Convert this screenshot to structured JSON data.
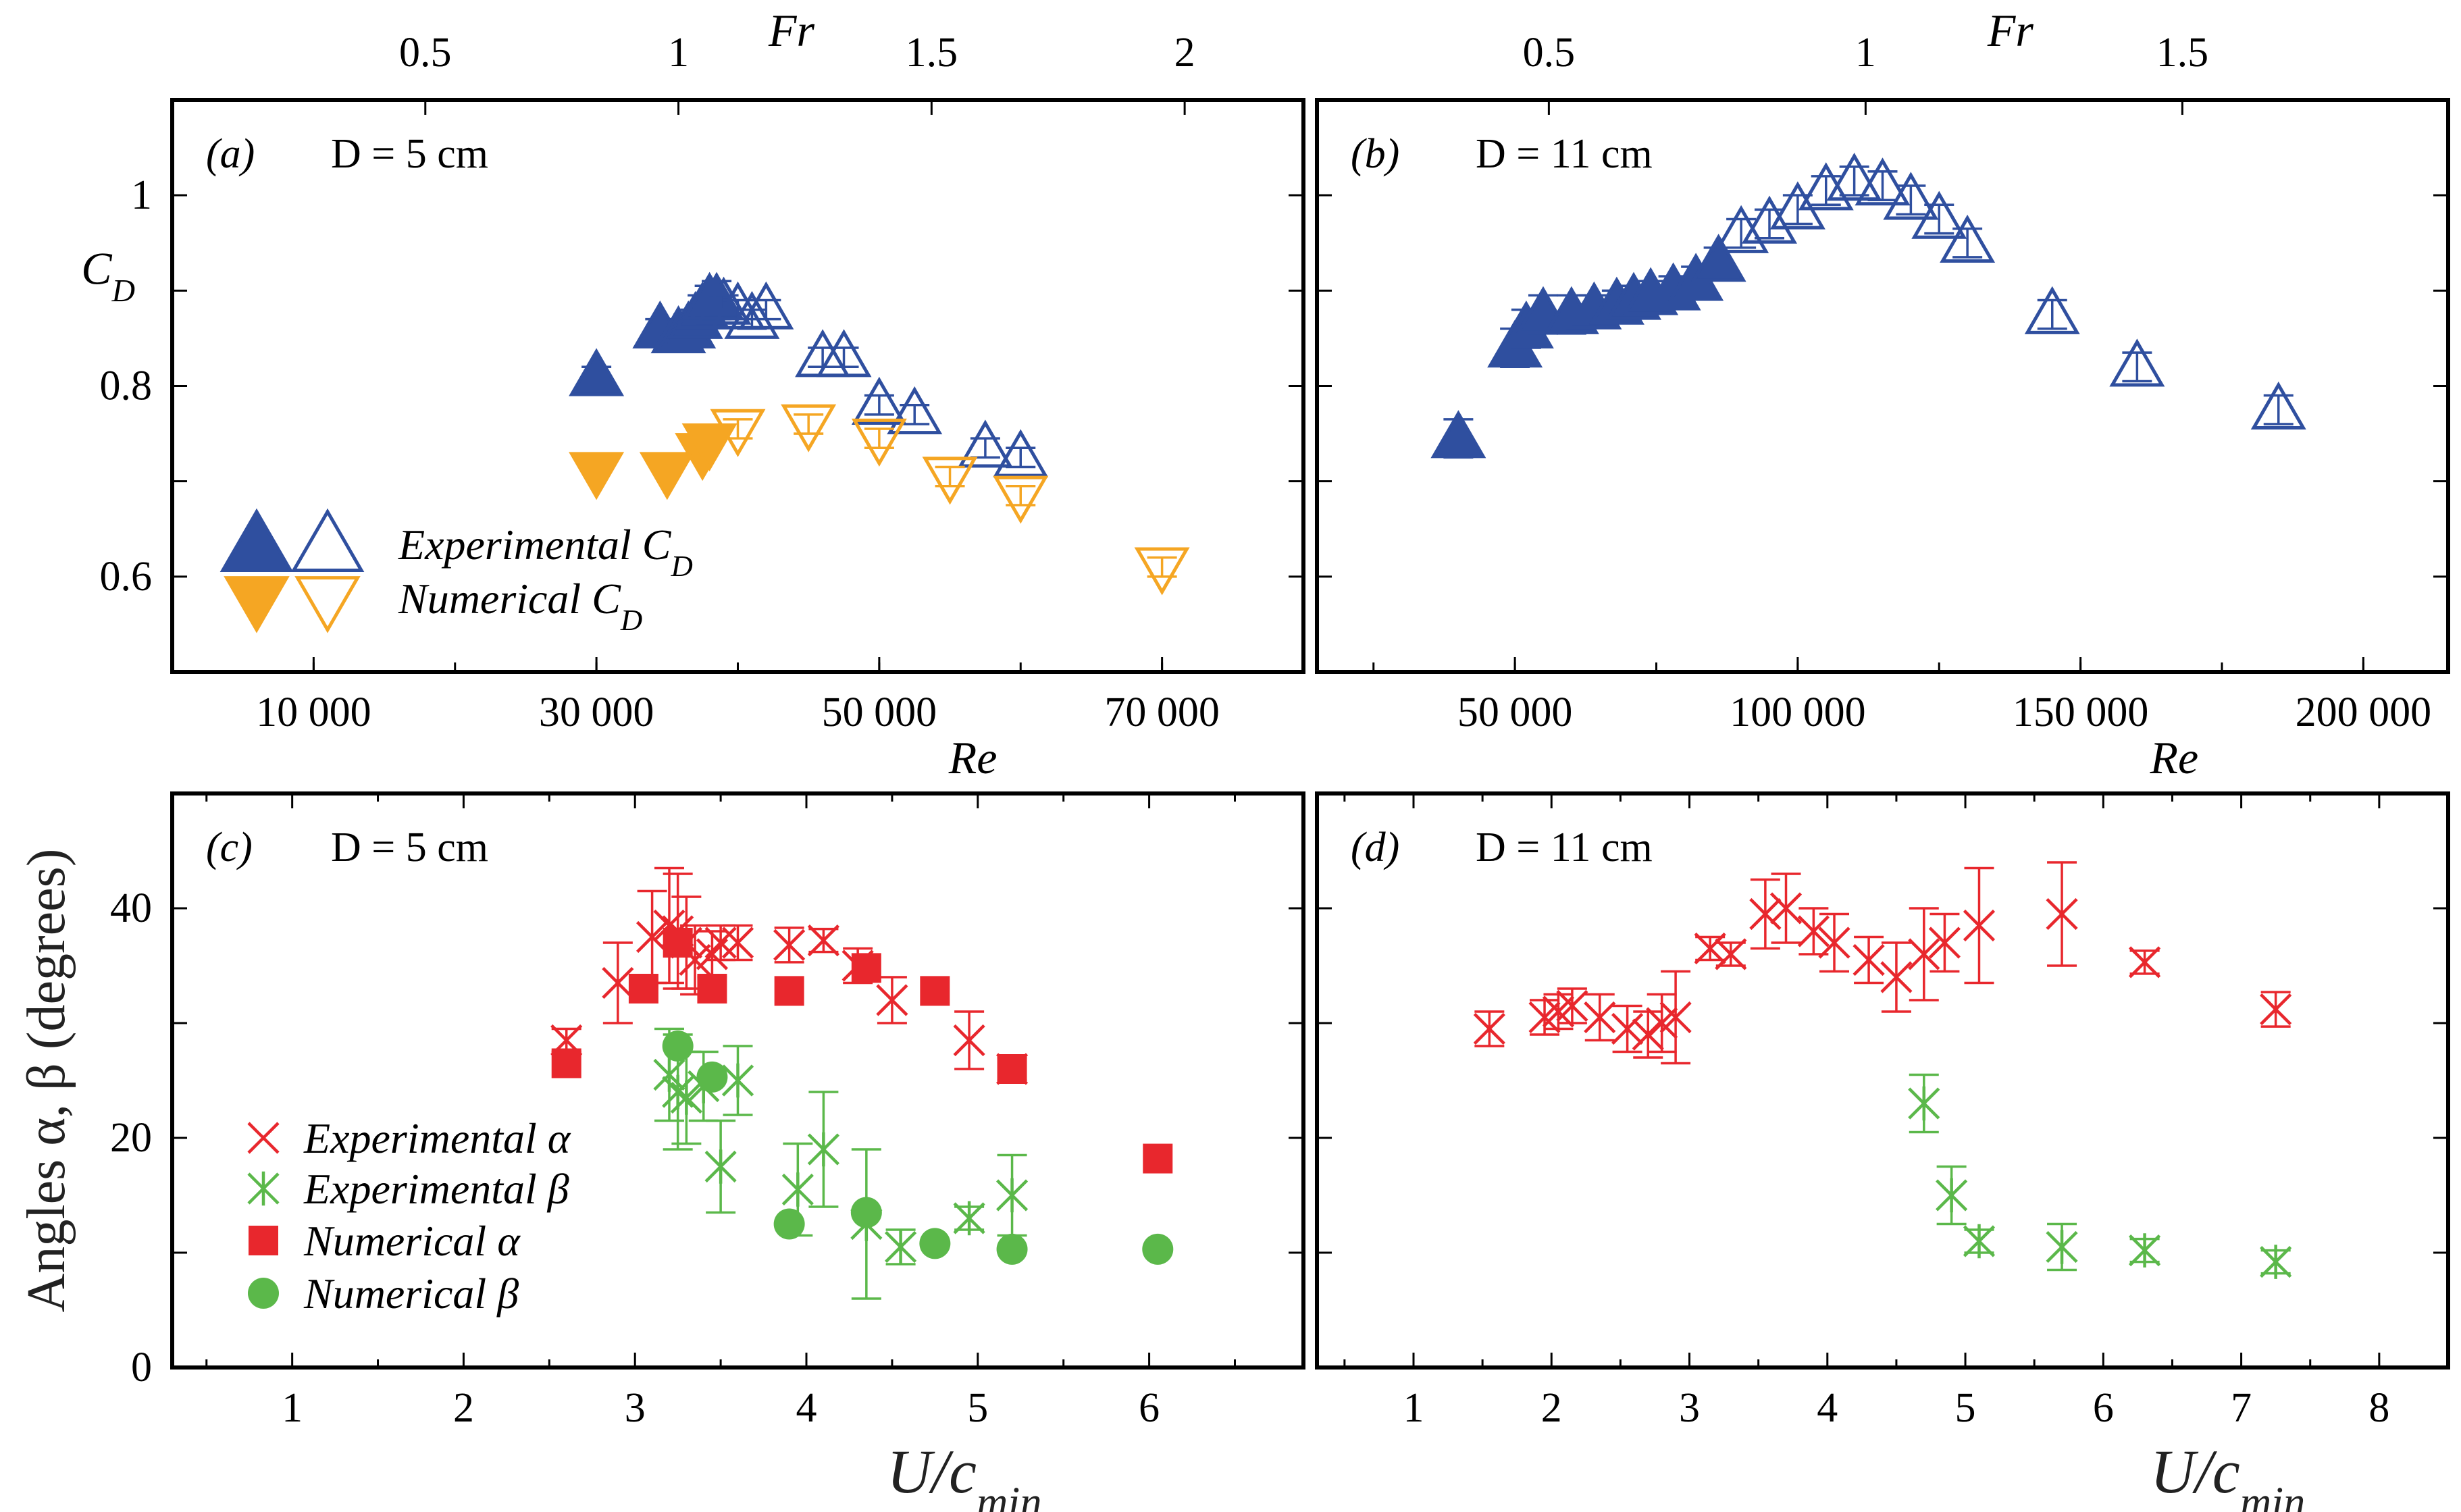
{
  "colors": {
    "blue": "#2f4f9f",
    "orange": "#f5a623",
    "red": "#e8272d",
    "green": "#5bb84a",
    "frame": "#000000"
  },
  "chart_data": [
    {
      "id": "a",
      "type": "scatter",
      "panel_label": "(a)",
      "title": "D = 5 cm",
      "xlabel": "Re",
      "ylabel": "C_D",
      "top_axis_label": "Fr",
      "xlim": [
        0,
        80000
      ],
      "ylim": [
        0.5,
        1.1
      ],
      "x_ticks": [
        10000,
        30000,
        50000,
        70000
      ],
      "x_tick_labels": [
        "10 000",
        "30 000",
        "50 000",
        "70 000"
      ],
      "y_ticks": [
        0.6,
        0.8,
        1.0
      ],
      "y_tick_labels": [
        "0.6",
        "0.8",
        "1"
      ],
      "top_ticks": [
        0.5,
        1,
        1.5,
        2
      ],
      "top_tick_labels": [
        "0.5",
        "1",
        "1.5",
        "2"
      ],
      "fr_to_re": 35800,
      "legend": [
        "Experimental C_D",
        "Numerical C_D"
      ],
      "series": [
        {
          "name": "Experimental C_D (filled)",
          "marker": "triangle-up",
          "filled": true,
          "color": "blue",
          "points": [
            [
              30000,
              0.81,
              0.01
            ],
            [
              34500,
              0.86,
              0.01
            ],
            [
              35800,
              0.855,
              0.01
            ],
            [
              36500,
              0.86,
              0.015
            ],
            [
              37000,
              0.87,
              0.01
            ],
            [
              37500,
              0.88,
              0.015
            ],
            [
              38000,
              0.89,
              0.015
            ],
            [
              38500,
              0.89,
              0.02
            ]
          ]
        },
        {
          "name": "Experimental C_D (open)",
          "marker": "triangle-up",
          "filled": false,
          "color": "blue",
          "points": [
            [
              39000,
              0.885,
              0.01
            ],
            [
              40000,
              0.88,
              0.01
            ],
            [
              41000,
              0.87,
              0.01
            ],
            [
              42000,
              0.88,
              0.01
            ],
            [
              46000,
              0.83,
              0.01
            ],
            [
              47500,
              0.83,
              0.01
            ],
            [
              50000,
              0.78,
              0.01
            ],
            [
              52500,
              0.77,
              0.01
            ],
            [
              57500,
              0.735,
              0.01
            ],
            [
              60000,
              0.725,
              0.01
            ]
          ]
        },
        {
          "name": "Numerical C_D (filled)",
          "marker": "triangle-down",
          "filled": true,
          "color": "orange",
          "points": [
            [
              30000,
              0.71,
              0
            ],
            [
              35000,
              0.71,
              0
            ],
            [
              37500,
              0.73,
              0
            ],
            [
              38000,
              0.74,
              0
            ]
          ]
        },
        {
          "name": "Numerical C_D (open)",
          "marker": "triangle-down",
          "filled": false,
          "color": "orange",
          "points": [
            [
              40000,
              0.755,
              0.01
            ],
            [
              45000,
              0.76,
              0.01
            ],
            [
              50000,
              0.745,
              0.01
            ],
            [
              55000,
              0.705,
              0.01
            ],
            [
              60000,
              0.685,
              0.01
            ],
            [
              70000,
              0.61,
              0.01
            ]
          ]
        }
      ]
    },
    {
      "id": "b",
      "type": "scatter",
      "panel_label": "(b)",
      "title": "D = 11 cm",
      "xlabel": "Re",
      "top_axis_label": "Fr",
      "xlim": [
        15000,
        215000
      ],
      "ylim": [
        0.5,
        1.1
      ],
      "x_ticks": [
        50000,
        100000,
        150000,
        200000
      ],
      "x_tick_labels": [
        "50 000",
        "100 000",
        "150 000",
        "200 000"
      ],
      "y_ticks": [
        0.6,
        0.8,
        1.0
      ],
      "y_tick_labels": [
        "",
        "",
        ""
      ],
      "top_ticks": [
        0.5,
        1,
        1.5
      ],
      "top_tick_labels": [
        "0.5",
        "1",
        "1.5"
      ],
      "fr_to_re": 112000,
      "series": [
        {
          "name": "Experimental C_D (filled)",
          "marker": "triangle-up",
          "filled": true,
          "color": "blue",
          "points": [
            [
              40000,
              0.745,
              0.02
            ],
            [
              50000,
              0.84,
              0.02
            ],
            [
              52000,
              0.86,
              0.02
            ],
            [
              55000,
              0.875,
              0.02
            ],
            [
              60000,
              0.875,
              0.02
            ],
            [
              64000,
              0.88,
              0.015
            ],
            [
              68000,
              0.885,
              0.015
            ],
            [
              71000,
              0.89,
              0.015
            ],
            [
              74000,
              0.895,
              0.015
            ],
            [
              78000,
              0.9,
              0.015
            ],
            [
              82000,
              0.91,
              0.015
            ],
            [
              86000,
              0.93,
              0.015
            ]
          ]
        },
        {
          "name": "Experimental C_D (open)",
          "marker": "triangle-up",
          "filled": false,
          "color": "blue",
          "points": [
            [
              90000,
              0.96,
              0.015
            ],
            [
              95000,
              0.97,
              0.015
            ],
            [
              100000,
              0.985,
              0.015
            ],
            [
              105000,
              1.005,
              0.015
            ],
            [
              110000,
              1.015,
              0.015
            ],
            [
              115000,
              1.01,
              0.015
            ],
            [
              120000,
              0.995,
              0.015
            ],
            [
              125000,
              0.975,
              0.015
            ],
            [
              130000,
              0.95,
              0.015
            ],
            [
              145000,
              0.875,
              0.015
            ],
            [
              160000,
              0.82,
              0.015
            ],
            [
              185000,
              0.775,
              0.015
            ]
          ]
        }
      ]
    },
    {
      "id": "c",
      "type": "scatter",
      "panel_label": "(c)",
      "title": "D = 5 cm",
      "xlabel": "U/c_min",
      "ylabel": "Angles α, β (degrees)",
      "xlim": [
        0.3,
        6.9
      ],
      "ylim": [
        0,
        50
      ],
      "x_ticks": [
        1,
        2,
        3,
        4,
        5,
        6
      ],
      "x_tick_labels": [
        "1",
        "2",
        "3",
        "4",
        "5",
        "6"
      ],
      "y_ticks": [
        0,
        20,
        40
      ],
      "y_tick_labels": [
        "0",
        "20",
        "40"
      ],
      "y_minor_ticks": [
        10,
        30
      ],
      "legend": [
        "Experimental α",
        "Experimental β",
        "Numerical α",
        "Numerical β"
      ],
      "series": [
        {
          "name": "Experimental α",
          "marker": "x",
          "color": "red",
          "points": [
            [
              2.6,
              28.5,
              1
            ],
            [
              2.9,
              33.5,
              3.5
            ],
            [
              3.1,
              37.5,
              4
            ],
            [
              3.2,
              38.5,
              5
            ],
            [
              3.25,
              38,
              5
            ],
            [
              3.3,
              37,
              4
            ],
            [
              3.35,
              35.5,
              3
            ],
            [
              3.45,
              36,
              2
            ],
            [
              3.5,
              37,
              1.5
            ],
            [
              3.6,
              37,
              1.5
            ],
            [
              3.9,
              36.8,
              1.5
            ],
            [
              4.1,
              37.2,
              1
            ],
            [
              4.3,
              35,
              1.5
            ],
            [
              4.5,
              32,
              2
            ],
            [
              4.95,
              28.5,
              2.5
            ],
            [
              5.2,
              26,
              1
            ]
          ]
        },
        {
          "name": "Experimental β",
          "marker": "star",
          "color": "green",
          "points": [
            [
              3.2,
              25.5,
              4
            ],
            [
              3.25,
              24,
              5
            ],
            [
              3.3,
              23.5,
              4
            ],
            [
              3.4,
              24.5,
              3
            ],
            [
              3.5,
              17.5,
              4
            ],
            [
              3.6,
              25,
              3
            ],
            [
              3.95,
              15.5,
              4
            ],
            [
              4.1,
              19,
              5
            ],
            [
              4.35,
              12.5,
              6.5
            ],
            [
              4.55,
              10.5,
              1.5
            ],
            [
              4.95,
              13,
              1
            ],
            [
              5.2,
              15,
              3.5
            ]
          ]
        },
        {
          "name": "Numerical α",
          "marker": "square",
          "color": "red",
          "points": [
            [
              2.6,
              26.5
            ],
            [
              3.05,
              33
            ],
            [
              3.25,
              37
            ],
            [
              3.45,
              33
            ],
            [
              3.9,
              32.8
            ],
            [
              4.35,
              34.8
            ],
            [
              4.75,
              32.8
            ],
            [
              5.2,
              26
            ],
            [
              6.05,
              18.2
            ]
          ]
        },
        {
          "name": "Numerical β",
          "marker": "circle",
          "color": "green",
          "points": [
            [
              3.25,
              28
            ],
            [
              3.45,
              25.3
            ],
            [
              3.9,
              12.5
            ],
            [
              4.35,
              13.5
            ],
            [
              4.75,
              10.8
            ],
            [
              5.2,
              10.3
            ],
            [
              6.05,
              10.3
            ]
          ]
        }
      ]
    },
    {
      "id": "d",
      "type": "scatter",
      "panel_label": "(d)",
      "title": "D = 11 cm",
      "xlabel": "U/c_min",
      "xlim": [
        0.3,
        8.5
      ],
      "ylim": [
        0,
        50
      ],
      "x_ticks": [
        1,
        2,
        3,
        4,
        5,
        6,
        7,
        8
      ],
      "x_tick_labels": [
        "1",
        "2",
        "3",
        "4",
        "5",
        "6",
        "7",
        "8"
      ],
      "y_ticks": [
        0,
        20,
        40
      ],
      "y_tick_labels": [
        "",
        "",
        ""
      ],
      "y_minor_ticks": [
        10,
        30
      ],
      "series": [
        {
          "name": "Experimental α",
          "marker": "x",
          "color": "red",
          "points": [
            [
              1.55,
              29.5,
              1.5
            ],
            [
              1.95,
              30.5,
              1.5
            ],
            [
              2.05,
              31,
              1.5
            ],
            [
              2.15,
              31.5,
              1.5
            ],
            [
              2.35,
              30.5,
              2
            ],
            [
              2.55,
              29.5,
              2
            ],
            [
              2.7,
              29,
              2
            ],
            [
              2.8,
              30,
              2.5
            ],
            [
              2.9,
              30.5,
              4
            ],
            [
              3.15,
              36.5,
              1
            ],
            [
              3.3,
              36,
              1
            ],
            [
              3.55,
              39.5,
              3
            ],
            [
              3.7,
              40,
              3
            ],
            [
              3.9,
              38,
              2
            ],
            [
              4.05,
              37,
              2.5
            ],
            [
              4.3,
              35.5,
              2
            ],
            [
              4.5,
              34,
              3
            ],
            [
              4.7,
              36,
              4
            ],
            [
              4.85,
              37,
              2.5
            ],
            [
              5.1,
              38.5,
              5
            ],
            [
              5.7,
              39.5,
              4.5
            ],
            [
              6.3,
              35.3,
              1
            ],
            [
              7.25,
              31.2,
              1.5
            ]
          ]
        },
        {
          "name": "Experimental β",
          "marker": "star",
          "color": "green",
          "points": [
            [
              4.7,
              23,
              2.5
            ],
            [
              4.9,
              15,
              2.5
            ],
            [
              5.1,
              11,
              1
            ],
            [
              5.7,
              10.5,
              2
            ],
            [
              6.3,
              10.2,
              1
            ],
            [
              7.25,
              9.2,
              1
            ]
          ]
        }
      ]
    }
  ]
}
